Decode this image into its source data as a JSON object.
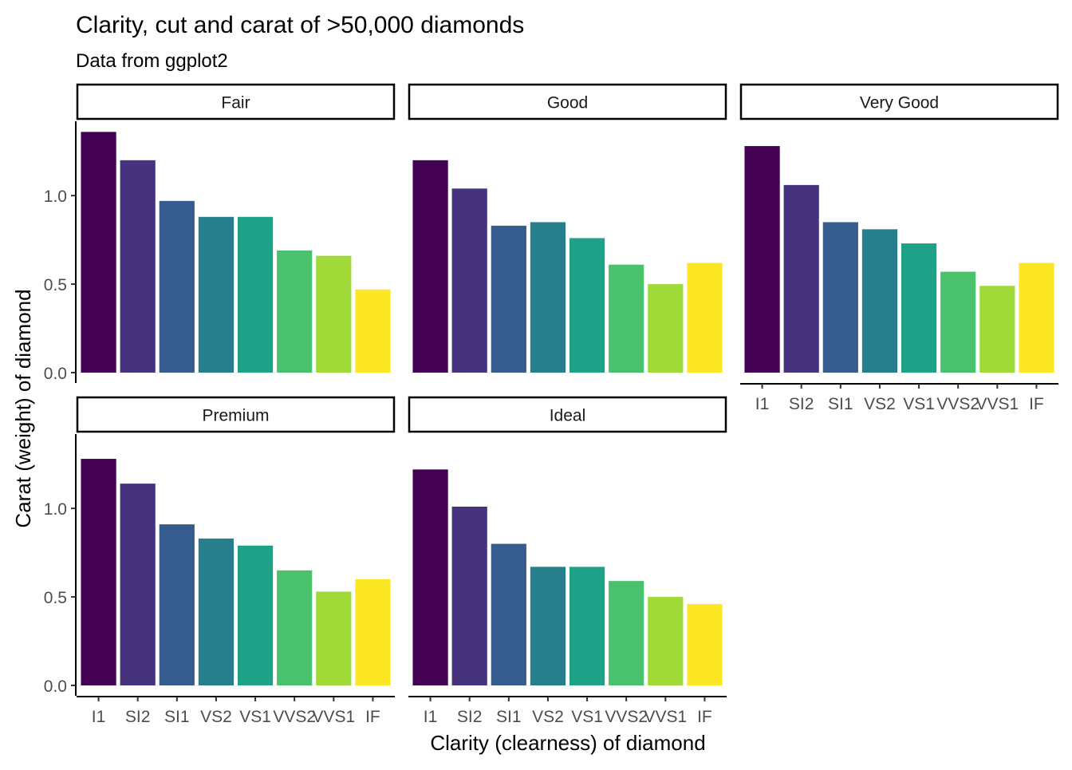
{
  "chart_data": {
    "type": "bar",
    "title": "Clarity, cut and carat of >50,000 diamonds",
    "subtitle": "Data from ggplot2",
    "xlabel": "Clarity (clearness) of diamond",
    "ylabel": "Carat (weight) of diamond",
    "ylim": [
      0,
      1.42
    ],
    "yticks": [
      0.0,
      0.5,
      1.0
    ],
    "ytick_labels": [
      "0.0",
      "0.5",
      "1.0"
    ],
    "grid": false,
    "legend": "none",
    "categories": [
      "I1",
      "SI2",
      "SI1",
      "VS2",
      "VS1",
      "VVS2",
      "VVS1",
      "IF"
    ],
    "colors": [
      "#440154",
      "#46337E",
      "#365C8D",
      "#277F8E",
      "#1FA187",
      "#4AC16D",
      "#A0DA39",
      "#FDE725"
    ],
    "facets": [
      {
        "name": "Fair",
        "values": [
          1.36,
          1.2,
          0.97,
          0.88,
          0.88,
          0.69,
          0.66,
          0.47
        ]
      },
      {
        "name": "Good",
        "values": [
          1.2,
          1.04,
          0.83,
          0.85,
          0.76,
          0.61,
          0.5,
          0.62
        ]
      },
      {
        "name": "Very Good",
        "values": [
          1.28,
          1.06,
          0.85,
          0.81,
          0.73,
          0.57,
          0.49,
          0.62
        ]
      },
      {
        "name": "Premium",
        "values": [
          1.28,
          1.14,
          0.91,
          0.83,
          0.79,
          0.65,
          0.53,
          0.6
        ]
      },
      {
        "name": "Ideal",
        "values": [
          1.22,
          1.01,
          0.8,
          0.67,
          0.67,
          0.59,
          0.5,
          0.46
        ]
      }
    ]
  }
}
